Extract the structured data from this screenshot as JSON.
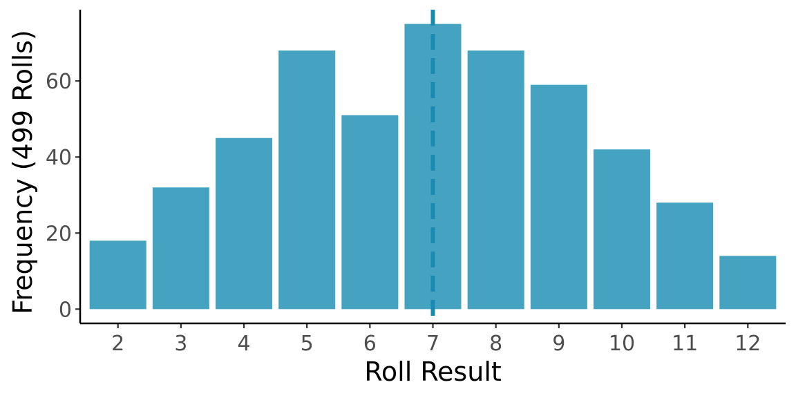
{
  "chart_data": {
    "type": "bar",
    "title": "",
    "xlabel": "Roll Result",
    "ylabel": "Frequency (499 Rolls)",
    "categories": [
      "2",
      "3",
      "4",
      "5",
      "6",
      "7",
      "8",
      "9",
      "10",
      "11",
      "12"
    ],
    "values": [
      18,
      32,
      45,
      68,
      51,
      75,
      68,
      59,
      42,
      28,
      14
    ],
    "ylim": [
      -3.75,
      78.75
    ],
    "yticks": [
      0,
      20,
      40,
      60
    ],
    "reference_line": {
      "x": 7,
      "style": "dashed"
    },
    "grid": false,
    "legend": "none",
    "colors": {
      "bar": "#45a3c1",
      "reference_line": "#1a8bb3",
      "axis": "#000000",
      "tick_text": "#4d4d4d"
    }
  }
}
